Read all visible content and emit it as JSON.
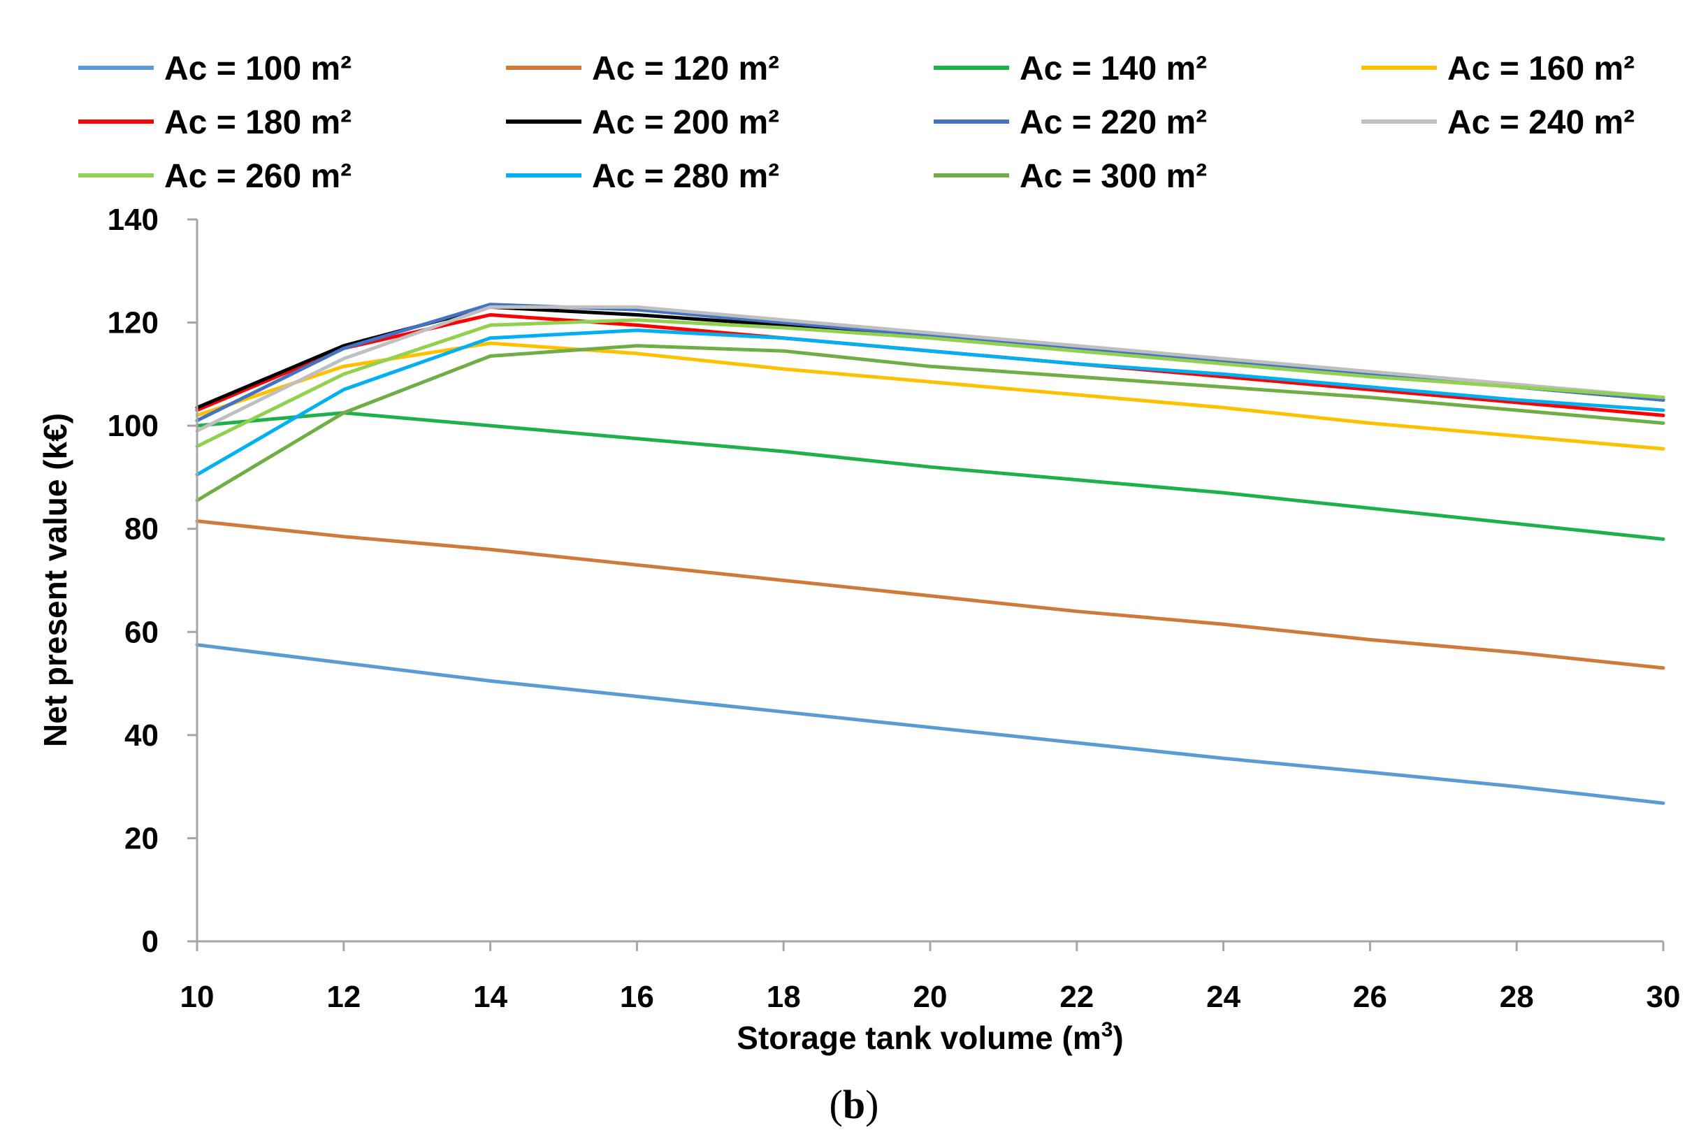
{
  "chart_data": {
    "type": "line",
    "title": "",
    "xlabel": "Storage tank volume (m",
    "xlabel_sup": "3",
    "xlabel_end": ")",
    "ylabel": "Net present value (k€)",
    "panel_label": {
      "open": "(",
      "letter": "b",
      "close": ")"
    },
    "xlim": [
      10,
      30
    ],
    "ylim": [
      0,
      140
    ],
    "x_ticks": [
      "10",
      "12",
      "14",
      "16",
      "18",
      "20",
      "22",
      "24",
      "26",
      "28",
      "30"
    ],
    "y_ticks": [
      "0",
      "20",
      "40",
      "60",
      "80",
      "100",
      "120",
      "140"
    ],
    "grid": false,
    "legend_position": "top",
    "x": [
      10,
      12,
      14,
      16,
      18,
      20,
      22,
      24,
      26,
      28,
      30
    ],
    "series": [
      {
        "name": "Ac = 100 m²",
        "color": "#5B9BD5",
        "values": [
          57.5,
          54,
          50.5,
          47.5,
          44.5,
          41.5,
          38.5,
          35.5,
          32.8,
          30,
          26.8
        ]
      },
      {
        "name": "Ac = 120 m²",
        "color": "#D07A3A",
        "values": [
          81.5,
          78.5,
          76,
          73,
          70,
          67,
          64,
          61.5,
          58.5,
          56,
          53
        ]
      },
      {
        "name": "Ac = 140 m²",
        "color": "#1DB04B",
        "values": [
          100,
          102.5,
          100,
          97.5,
          95,
          92,
          89.5,
          87,
          84,
          81,
          78
        ]
      },
      {
        "name": "Ac = 160 m²",
        "color": "#FFC000",
        "values": [
          102,
          111.5,
          116,
          114,
          111,
          108.5,
          106,
          103.5,
          100.5,
          98,
          95.5
        ]
      },
      {
        "name": "Ac = 180 m²",
        "color": "#FF0000",
        "values": [
          103,
          115,
          121.5,
          119.5,
          117,
          114.5,
          112,
          109.5,
          107,
          104.5,
          102
        ]
      },
      {
        "name": "Ac = 200 m²",
        "color": "#000000",
        "values": [
          103.5,
          115.5,
          123,
          121.5,
          119.5,
          117.5,
          115,
          112.5,
          110,
          107.5,
          105
        ]
      },
      {
        "name": "Ac = 220 m²",
        "color": "#4472C4",
        "values": [
          101,
          115,
          123.5,
          122.5,
          120,
          117.5,
          115,
          112.5,
          110,
          107.5,
          105
        ]
      },
      {
        "name": "Ac = 240 m²",
        "color": "#BFBFBF",
        "values": [
          99,
          113,
          123,
          123,
          120.5,
          118,
          115.5,
          113,
          110.5,
          108,
          105.5
        ]
      },
      {
        "name": "Ac = 260 m²",
        "color": "#92D050",
        "values": [
          96,
          110,
          119.5,
          120.5,
          119,
          117,
          114.5,
          112,
          109.5,
          107.5,
          105.5
        ]
      },
      {
        "name": "Ac = 280 m²",
        "color": "#00B0F0",
        "values": [
          90.5,
          107,
          117,
          118.5,
          117,
          114.5,
          112,
          110,
          107.5,
          105,
          103
        ]
      },
      {
        "name": "Ac = 300 m²",
        "color": "#70AD47",
        "values": [
          85.5,
          102.5,
          113.5,
          115.5,
          114.5,
          111.5,
          109.5,
          107.5,
          105.5,
          103,
          100.5
        ]
      }
    ]
  }
}
